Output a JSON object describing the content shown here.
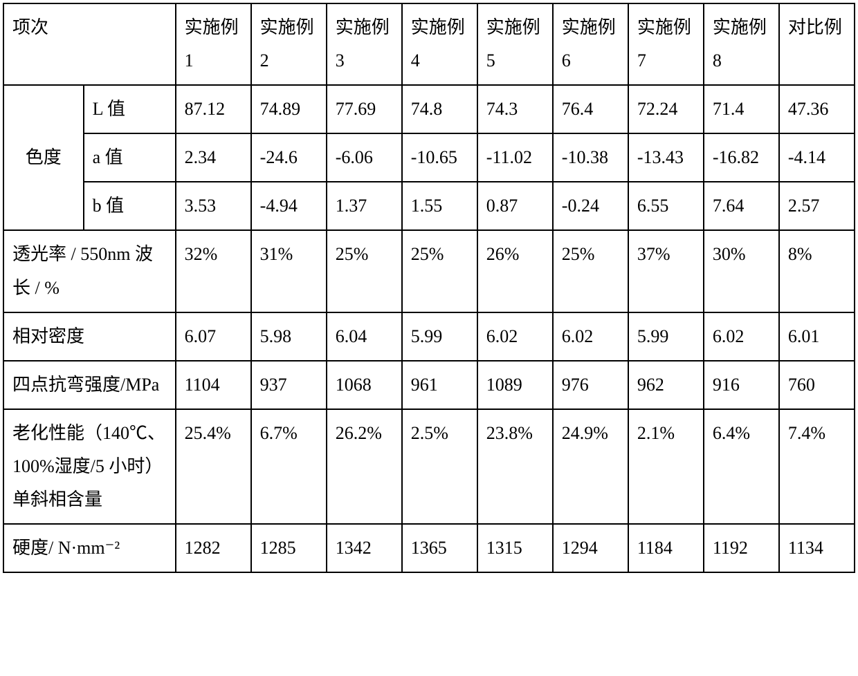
{
  "table": {
    "border_color": "#000000",
    "background_color": "#ffffff",
    "text_color": "#000000",
    "font_size": 26,
    "font_family": "SimSun",
    "header": {
      "item_label": "项次",
      "columns": [
        "实施例 1",
        "实施例 2",
        "实施例 3",
        "实施例 4",
        "实施例 5",
        "实施例 6",
        "实施例 7",
        "实施例 8",
        "对比例"
      ]
    },
    "chroma": {
      "group_label": "色度",
      "rows": [
        {
          "label": "L 值",
          "values": [
            "87.12",
            "74.89",
            "77.69",
            "74.8",
            "74.3",
            "76.4",
            "72.24",
            "71.4",
            "47.36"
          ]
        },
        {
          "label": "a 值",
          "values": [
            "2.34",
            "-24.6",
            "-6.06",
            "-10.65",
            "-11.02",
            "-10.38",
            "-13.43",
            "-16.82",
            "-4.14"
          ]
        },
        {
          "label": "b 值",
          "values": [
            "3.53",
            "-4.94",
            "1.37",
            "1.55",
            "0.87",
            "-0.24",
            "6.55",
            "7.64",
            "2.57"
          ]
        }
      ]
    },
    "rows": [
      {
        "label": "透光率 / 550nm 波长 / %",
        "values": [
          "32%",
          "31%",
          "25%",
          "25%",
          "26%",
          "25%",
          "37%",
          "30%",
          "8%"
        ]
      },
      {
        "label": "相对密度",
        "values": [
          "6.07",
          "5.98",
          "6.04",
          "5.99",
          "6.02",
          "6.02",
          "5.99",
          "6.02",
          "6.01"
        ]
      },
      {
        "label": "四点抗弯强度/MPa",
        "values": [
          "1104",
          "937",
          "1068",
          "961",
          "1089",
          "976",
          "962",
          "916",
          "760"
        ]
      },
      {
        "label": "老化性能（140℃、100%湿度/5 小时）单斜相含量",
        "values": [
          "25.4%",
          "6.7%",
          "26.2%",
          "2.5%",
          "23.8%",
          "24.9%",
          "2.1%",
          "6.4%",
          "7.4%"
        ]
      },
      {
        "label": "硬度/ N·mm⁻²",
        "values": [
          "1282",
          "1285",
          "1342",
          "1365",
          "1315",
          "1294",
          "1184",
          "1192",
          "1134"
        ]
      }
    ]
  }
}
